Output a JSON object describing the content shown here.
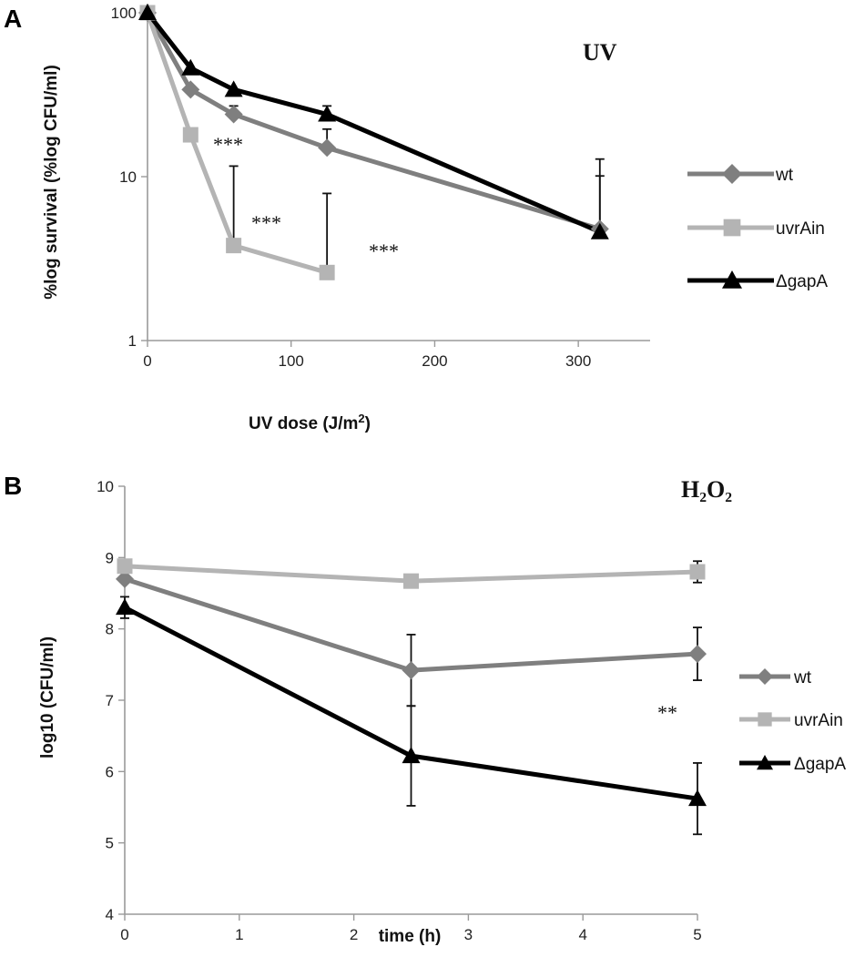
{
  "panels": {
    "a": {
      "letter": "A",
      "title": "UV",
      "annotations": [
        "***",
        "***",
        "***"
      ],
      "legend": {
        "wt": "wt",
        "uvrAin": "uvrAin",
        "gapA": "ΔgapA"
      }
    },
    "b": {
      "letter": "B",
      "title": "H₂O₂",
      "annotations": [
        "**"
      ],
      "legend": {
        "wt": "wt",
        "uvrAin": "uvrAin",
        "gapA": "ΔgapA"
      }
    }
  },
  "colors": {
    "wt": "#7f7f7f",
    "uvrAin": "#b4b4b4",
    "gapA": "#000000"
  },
  "chart_data": [
    {
      "type": "line",
      "title": "UV",
      "xlabel": "UV dose (J/m²)",
      "ylabel": "%log survival (%log CFU/ml)",
      "yscale": "log",
      "xlim": [
        0,
        350
      ],
      "ylim": [
        1,
        100
      ],
      "xticks": [
        0,
        100,
        200,
        300
      ],
      "yticks": [
        1,
        10,
        100
      ],
      "series": [
        {
          "name": "wt",
          "marker": "diamond",
          "x": [
            0,
            30,
            60,
            125,
            315
          ],
          "y": [
            100,
            34,
            24,
            15,
            4.8
          ],
          "err": [
            null,
            null,
            3,
            4.5,
            8
          ]
        },
        {
          "name": "uvrAin",
          "marker": "square",
          "x": [
            0,
            30,
            60,
            125
          ],
          "y": [
            100,
            18,
            3.8,
            2.6
          ],
          "err": [
            null,
            null,
            7.8,
            5.3
          ]
        },
        {
          "name": "ΔgapA",
          "marker": "triangle",
          "x": [
            0,
            30,
            60,
            125,
            315
          ],
          "y": [
            100,
            46,
            34,
            24,
            4.6
          ],
          "err": [
            null,
            null,
            null,
            3,
            5.5
          ]
        }
      ],
      "annotations": [
        {
          "text": "***",
          "x": 60,
          "y": 17
        },
        {
          "text": "***",
          "x": 85,
          "y": 6.5
        },
        {
          "text": "***",
          "x": 150,
          "y": 3.3
        }
      ]
    },
    {
      "type": "line",
      "title": "H₂O₂",
      "xlabel": "time (h)",
      "ylabel": "log10 (CFU/ml)",
      "xlim": [
        0,
        5
      ],
      "ylim": [
        4,
        10
      ],
      "xticks": [
        0,
        1,
        2,
        3,
        4,
        5
      ],
      "yticks": [
        4,
        5,
        6,
        7,
        8,
        9,
        10
      ],
      "series": [
        {
          "name": "wt",
          "marker": "diamond",
          "x": [
            0,
            2.5,
            5
          ],
          "y": [
            8.7,
            7.42,
            7.65
          ],
          "err": [
            null,
            0.5,
            0.37
          ]
        },
        {
          "name": "uvrAin",
          "marker": "square",
          "x": [
            0,
            2.5,
            5
          ],
          "y": [
            8.88,
            8.67,
            8.8
          ],
          "err": [
            null,
            null,
            0.15
          ]
        },
        {
          "name": "ΔgapA",
          "marker": "triangle",
          "x": [
            0,
            2.5,
            5
          ],
          "y": [
            8.3,
            6.22,
            5.62
          ],
          "err": [
            0.15,
            0.7,
            0.5
          ]
        }
      ],
      "annotations": [
        {
          "text": "**",
          "x": 4.6,
          "y": 5.85
        }
      ]
    }
  ]
}
